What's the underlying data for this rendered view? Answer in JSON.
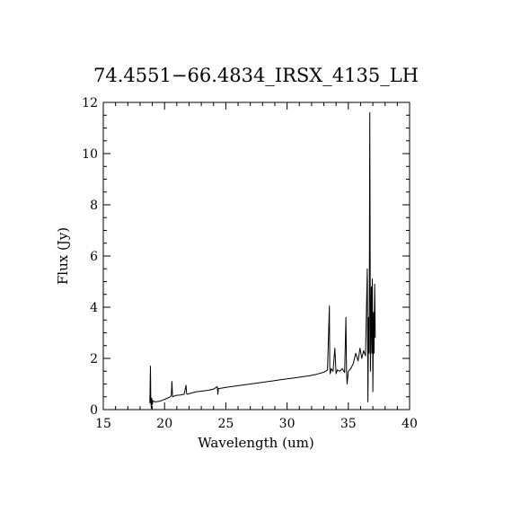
{
  "chart_data": {
    "type": "line",
    "title": "74.4551−66.4834_IRSX_4135_LH",
    "xlabel": "Wavelength (um)",
    "ylabel": "Flux (Jy)",
    "xlim": [
      15,
      40
    ],
    "ylim": [
      0,
      12
    ],
    "xticks": [
      15,
      20,
      25,
      30,
      35,
      40
    ],
    "yticks": [
      0,
      2,
      4,
      6,
      8,
      10,
      12
    ],
    "xtick_labels": [
      "15",
      "20",
      "25",
      "30",
      "35",
      "40"
    ],
    "ytick_labels": [
      "0",
      "2",
      "4",
      "6",
      "8",
      "10",
      "12"
    ],
    "grid": false,
    "series": [
      {
        "color": "#000000",
        "x": [
          18.8,
          18.85,
          18.88,
          18.92,
          18.95,
          19.0,
          19.05,
          19.2,
          19.5,
          19.8,
          20.1,
          20.4,
          20.55,
          20.6,
          20.65,
          20.9,
          21.3,
          21.6,
          21.75,
          21.8,
          21.85,
          22.2,
          22.6,
          23.0,
          23.5,
          24.0,
          24.3,
          24.35,
          24.4,
          24.8,
          25.2,
          25.8,
          26.4,
          27.0,
          27.6,
          28.2,
          28.8,
          29.4,
          30.0,
          30.6,
          31.2,
          31.8,
          32.4,
          33.0,
          33.3,
          33.45,
          33.48,
          33.52,
          33.6,
          33.75,
          33.9,
          34.0,
          34.1,
          34.3,
          34.5,
          34.7,
          34.8,
          34.85,
          34.9,
          35.0,
          35.2,
          35.4,
          35.6,
          35.8,
          35.95,
          36.1,
          36.25,
          36.4,
          36.55,
          36.6,
          36.65,
          36.7,
          36.75,
          36.8,
          36.88,
          36.92,
          36.96,
          37.0,
          37.05,
          37.1,
          37.15,
          37.2
        ],
        "y": [
          0.25,
          1.7,
          0.3,
          0.05,
          0.45,
          0.2,
          0.35,
          0.3,
          0.32,
          0.36,
          0.42,
          0.48,
          0.55,
          1.1,
          0.5,
          0.55,
          0.57,
          0.6,
          0.95,
          0.62,
          0.6,
          0.65,
          0.7,
          0.72,
          0.75,
          0.8,
          0.9,
          0.6,
          0.82,
          0.85,
          0.88,
          0.92,
          0.96,
          1.0,
          1.04,
          1.08,
          1.12,
          1.16,
          1.2,
          1.24,
          1.28,
          1.32,
          1.38,
          1.46,
          1.55,
          4.05,
          1.7,
          1.4,
          1.6,
          1.5,
          2.4,
          1.4,
          1.55,
          1.5,
          1.6,
          1.45,
          3.6,
          1.5,
          1.0,
          1.5,
          1.6,
          1.8,
          2.2,
          1.9,
          2.4,
          2.0,
          2.3,
          2.1,
          5.5,
          0.3,
          3.6,
          2.2,
          11.6,
          1.5,
          4.8,
          2.2,
          5.1,
          0.7,
          3.8,
          2.2,
          4.9,
          2.8
        ]
      }
    ]
  }
}
